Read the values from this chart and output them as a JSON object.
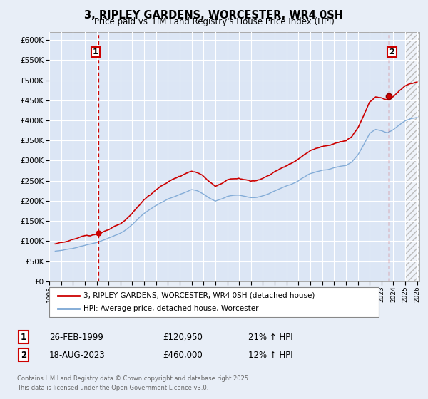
{
  "title": "3, RIPLEY GARDENS, WORCESTER, WR4 0SH",
  "subtitle": "Price paid vs. HM Land Registry's House Price Index (HPI)",
  "background_color": "#e8eef7",
  "plot_bg_color": "#dce6f5",
  "grid_color": "#ffffff",
  "hpi_color": "#7aa6d4",
  "price_color": "#cc0000",
  "ylim": [
    0,
    620000
  ],
  "yticks": [
    0,
    50000,
    100000,
    150000,
    200000,
    250000,
    300000,
    350000,
    400000,
    450000,
    500000,
    550000,
    600000
  ],
  "xlim_start": 1995.4,
  "xlim_end": 2026.2,
  "sale1_x": 1999.15,
  "sale1_y": 120950,
  "sale1_label": "1",
  "sale1_date": "26-FEB-1999",
  "sale1_price": "£120,950",
  "sale1_hpi": "21% ↑ HPI",
  "sale2_x": 2023.62,
  "sale2_y": 460000,
  "sale2_label": "2",
  "sale2_date": "18-AUG-2023",
  "sale2_price": "£460,000",
  "sale2_hpi": "12% ↑ HPI",
  "legend_line1": "3, RIPLEY GARDENS, WORCESTER, WR4 0SH (detached house)",
  "legend_line2": "HPI: Average price, detached house, Worcester",
  "footer1": "Contains HM Land Registry data © Crown copyright and database right 2025.",
  "footer2": "This data is licensed under the Open Government Licence v3.0.",
  "future_start": 2025.0
}
